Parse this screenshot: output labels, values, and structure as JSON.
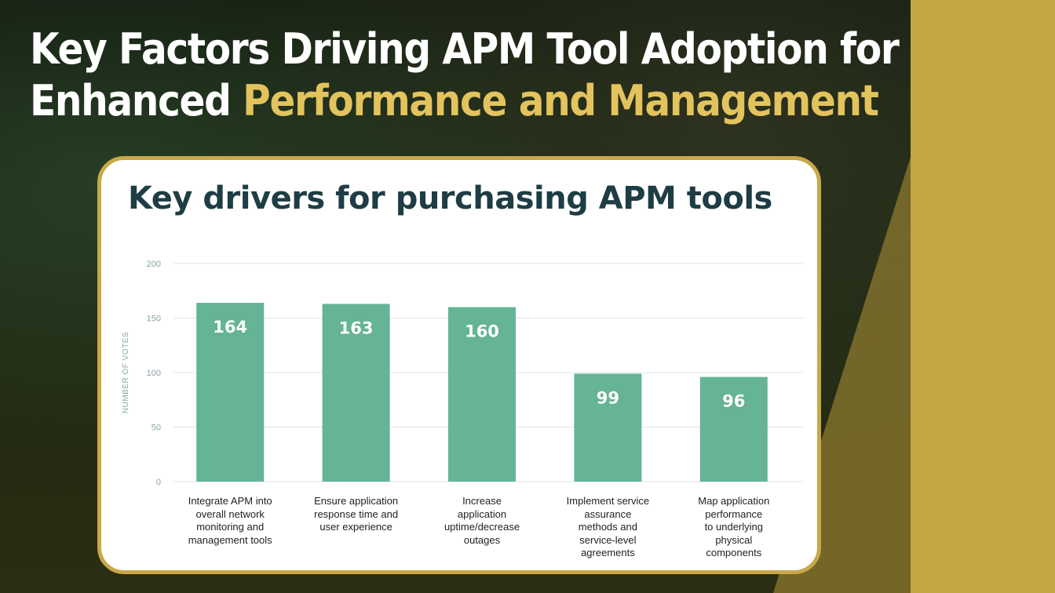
{
  "headline": {
    "line1": "Key Factors Driving APM Tool Adoption for",
    "line2_plain": "Enhanced ",
    "line2_accent": "Performance and Management"
  },
  "colors": {
    "accent_gold": "#c5a541",
    "headline_accent": "#e3c35d",
    "bar": "#64b495",
    "title": "#1e3d44"
  },
  "chart_data": {
    "type": "bar",
    "title": "Key drivers for purchasing APM tools",
    "ylabel": "NUMBER OF VOTES",
    "xlabel": "",
    "ylim": [
      0,
      200
    ],
    "yticks": [
      0,
      50,
      100,
      150,
      200
    ],
    "grid": true,
    "categories": [
      "Integrate APM into overall network monitoring and management tools",
      "Ensure application response time and user experience",
      "Increase application uptime/decrease outages",
      "Implement service assurance methods and service-level agreements",
      "Map application performance to underlying physical components"
    ],
    "category_lines": [
      [
        "Integrate APM into",
        "overall network",
        "monitoring and",
        "management tools"
      ],
      [
        "Ensure application",
        "response time and",
        "user experience"
      ],
      [
        "Increase",
        "application",
        "uptime/decrease",
        "outages"
      ],
      [
        "Implement service",
        "assurance",
        "methods and",
        "service-level",
        "agreements"
      ],
      [
        "Map application",
        "performance",
        "to underlying",
        "physical",
        "components"
      ]
    ],
    "values": [
      164,
      163,
      160,
      99,
      96
    ]
  }
}
